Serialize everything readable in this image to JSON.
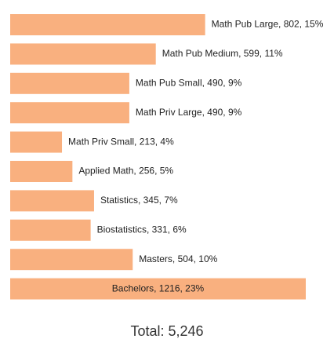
{
  "chart_data": {
    "type": "bar",
    "orientation": "horizontal",
    "color": "#f9b07f",
    "values": [
      802,
      599,
      490,
      490,
      213,
      256,
      345,
      331,
      504,
      1216
    ],
    "value_labels": [
      "Math Pub Large, 802, 15%",
      "Math Pub Medium, 599, 11%",
      "Math Pub Small, 490, 9%",
      "Math Priv Large, 490, 9%",
      "Math Priv Small, 213, 4%",
      "Applied Math, 256, 5%",
      "Statistics, 345, 7%",
      "Biostatistics, 331, 6%",
      "Masters, 504, 10%",
      "Bachelors, 1216, 23%"
    ],
    "annotation": "Total: 5,246"
  }
}
